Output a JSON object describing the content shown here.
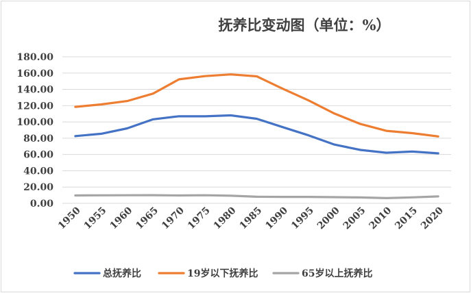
{
  "chart_data": {
    "type": "line",
    "title": "抚养比变动图（单位：%）",
    "xlabel": "",
    "ylabel": "",
    "x": [
      "1950",
      "1955",
      "1960",
      "1965",
      "1970",
      "1975",
      "1980",
      "1985",
      "1990",
      "1995",
      "2000",
      "2005",
      "2010",
      "2015",
      "2020"
    ],
    "yticks": [
      "0.00",
      "20.00",
      "40.00",
      "60.00",
      "80.00",
      "100.00",
      "120.00",
      "140.00",
      "160.00",
      "180.00"
    ],
    "ylim": [
      0,
      180
    ],
    "grid": true,
    "legend_position": "bottom",
    "series": [
      {
        "name": "总抚养比",
        "color": "#4472c4",
        "values": [
          82.6,
          85.5,
          92.1,
          103.2,
          107.0,
          106.9,
          108.1,
          103.9,
          93.6,
          83.5,
          72.2,
          65.6,
          62.2,
          63.6,
          61.4
        ]
      },
      {
        "name": "19岁以下抚养比",
        "color": "#ed7d31",
        "values": [
          118.5,
          121.5,
          125.7,
          134.8,
          152.3,
          156.3,
          158.4,
          156.0,
          140.8,
          126.4,
          110.3,
          97.5,
          89.1,
          86.2,
          82.2
        ]
      },
      {
        "name": "65岁以上抚养比",
        "color": "#a5a5a5",
        "values": [
          9.7,
          9.8,
          9.9,
          10.0,
          9.7,
          9.9,
          9.3,
          8.1,
          7.9,
          7.9,
          7.6,
          7.2,
          6.4,
          7.3,
          8.5
        ]
      }
    ]
  }
}
